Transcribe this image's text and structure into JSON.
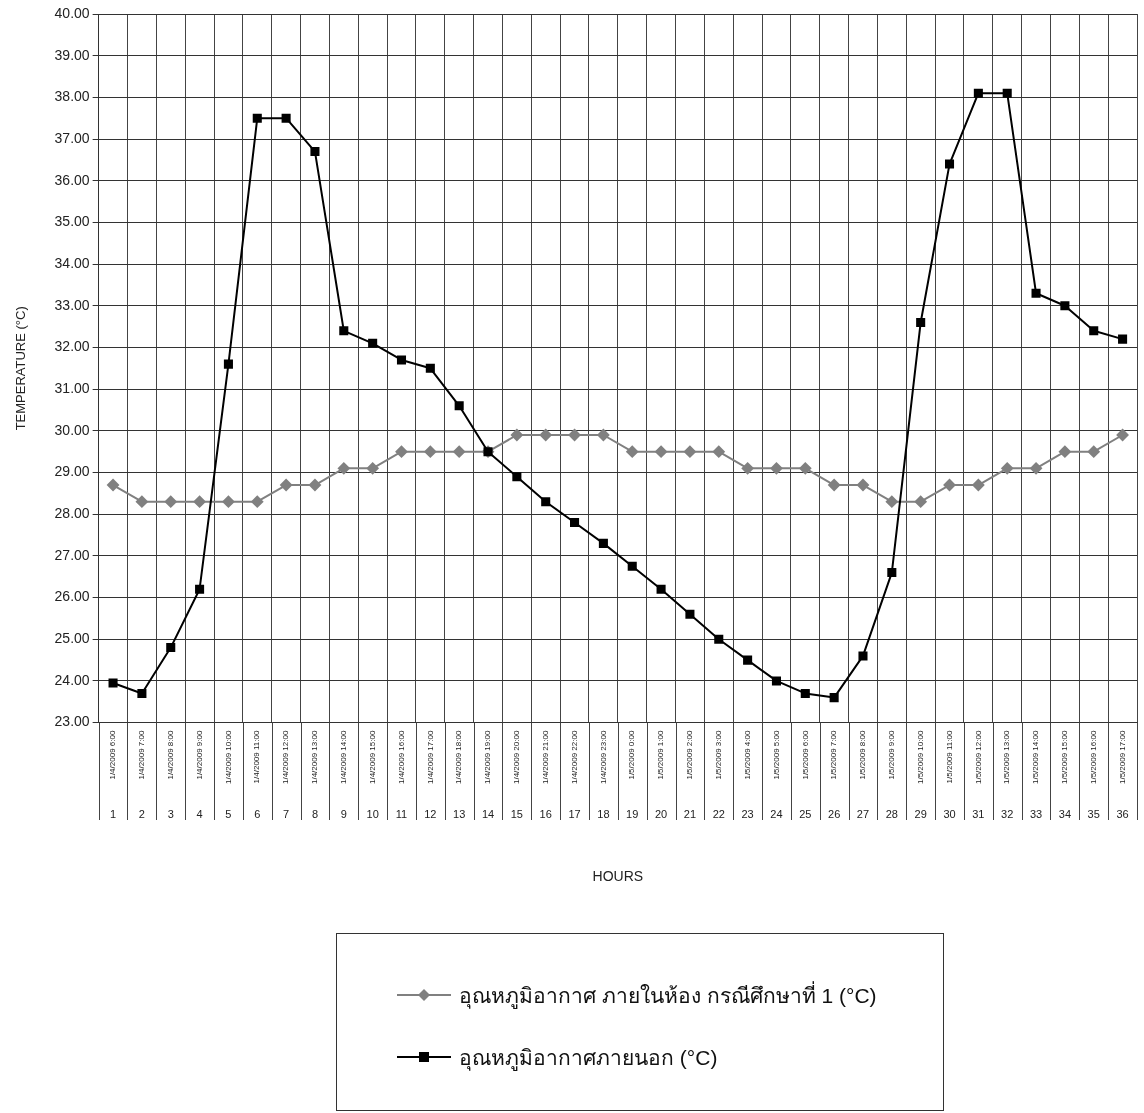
{
  "chart_data": {
    "type": "line",
    "xlabel": "HOURS",
    "ylabel": "TEMPERATURE (°C)",
    "categories": [
      "1/4/2009 6:00",
      "1/4/2009 7:00",
      "1/4/2009 8:00",
      "1/4/2009 9:00",
      "1/4/2009 10:00",
      "1/4/2009 11:00",
      "1/4/2009 12:00",
      "1/4/2009 13:00",
      "1/4/2009 14:00",
      "1/4/2009 15:00",
      "1/4/2009 16:00",
      "1/4/2009 17:00",
      "1/4/2009 18:00",
      "1/4/2009 19:00",
      "1/4/2009 20:00",
      "1/4/2009 21:00",
      "1/4/2009 22:00",
      "1/4/2009 23:00",
      "1/5/2009 0:00",
      "1/5/2009 1:00",
      "1/5/2009 2:00",
      "1/5/2009 3:00",
      "1/5/2009 4:00",
      "1/5/2009 5:00",
      "1/5/2009 6:00",
      "1/5/2009 7:00",
      "1/5/2009 8:00",
      "1/5/2009 9:00",
      "1/5/2009 10:00",
      "1/5/2009 11:00",
      "1/5/2009 12:00",
      "1/5/2009 13:00",
      "1/5/2009 14:00",
      "1/5/2009 15:00",
      "1/5/2009 16:00",
      "1/5/2009 17:00"
    ],
    "x2lim": [
      0.5,
      36.5
    ],
    "x2ticks": [
      1,
      2,
      3,
      4,
      5,
      6,
      7,
      8,
      9,
      10,
      11,
      12,
      13,
      14,
      15,
      16,
      17,
      18,
      19,
      20,
      21,
      22,
      23,
      24,
      25,
      26,
      27,
      28,
      29,
      30,
      31,
      32,
      33,
      34,
      35,
      36
    ],
    "ylim": [
      23,
      40
    ],
    "yticks": [
      {
        "value": 23,
        "label": "23.00"
      },
      {
        "value": 24,
        "label": "24.00"
      },
      {
        "value": 25,
        "label": "25.00"
      },
      {
        "value": 26,
        "label": "26.00"
      },
      {
        "value": 27,
        "label": "27.00"
      },
      {
        "value": 28,
        "label": "28.00"
      },
      {
        "value": 29,
        "label": "29.00"
      },
      {
        "value": 30,
        "label": "30.00"
      },
      {
        "value": 31,
        "label": "31.00"
      },
      {
        "value": 32,
        "label": "32.00"
      },
      {
        "value": 33,
        "label": "33.00"
      },
      {
        "value": 34,
        "label": "34.00"
      },
      {
        "value": 35,
        "label": "35.00"
      },
      {
        "value": 36,
        "label": "36.00"
      },
      {
        "value": 37,
        "label": "37.00"
      },
      {
        "value": 38,
        "label": "38.00"
      },
      {
        "value": 39,
        "label": "39.00"
      },
      {
        "value": 40,
        "label": "40.00"
      }
    ],
    "grid": true,
    "legend": "bottom",
    "series": [
      {
        "name": "อุณหภูมิอากาศ ภายในห้อง กรณีศึกษาที่ 1 (°C)",
        "color": "#808080",
        "marker": "diamond",
        "values": [
          28.7,
          28.3,
          28.3,
          28.3,
          28.3,
          28.3,
          28.7,
          28.7,
          29.1,
          29.1,
          29.5,
          29.5,
          29.5,
          29.5,
          29.9,
          29.9,
          29.9,
          29.9,
          29.5,
          29.5,
          29.5,
          29.5,
          29.1,
          29.1,
          29.1,
          28.7,
          28.7,
          28.3,
          28.3,
          28.7,
          28.7,
          29.1,
          29.1,
          29.5,
          29.5,
          29.9
        ]
      },
      {
        "name": "อุณหภูมิอากาศภายนอก (°C)",
        "color": "#000000",
        "marker": "square",
        "values": [
          23.95,
          23.7,
          24.8,
          26.2,
          31.6,
          37.5,
          37.5,
          36.7,
          32.4,
          32.1,
          31.7,
          31.5,
          30.6,
          29.5,
          28.9,
          28.3,
          27.8,
          27.3,
          26.75,
          26.2,
          25.6,
          25.0,
          24.5,
          24.0,
          23.7,
          23.6,
          24.6,
          26.6,
          32.6,
          36.4,
          38.1,
          38.1,
          33.3,
          33.0,
          32.4,
          32.2
        ]
      }
    ]
  }
}
